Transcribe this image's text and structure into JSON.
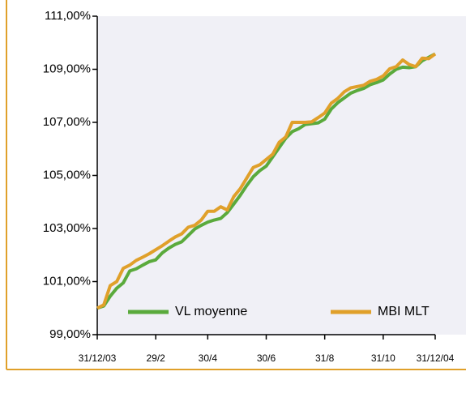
{
  "chart_data": {
    "type": "line",
    "categories": [
      "31/12/03",
      null,
      null,
      null,
      null,
      null,
      null,
      null,
      null,
      "29/2",
      null,
      null,
      null,
      null,
      null,
      null,
      null,
      "30/4",
      null,
      null,
      null,
      null,
      null,
      null,
      null,
      null,
      "30/6",
      null,
      null,
      null,
      null,
      null,
      null,
      null,
      null,
      "31/8",
      null,
      null,
      null,
      null,
      null,
      null,
      null,
      null,
      "31/10",
      null,
      null,
      null,
      null,
      null,
      null,
      null,
      "31/12/04"
    ],
    "series": [
      {
        "name": "VL moyenne",
        "color": "#5aaa3c",
        "values": [
          100.0,
          100.08,
          100.45,
          100.75,
          100.95,
          101.4,
          101.48,
          101.62,
          101.75,
          101.82,
          102.08,
          102.26,
          102.4,
          102.5,
          102.74,
          102.98,
          103.12,
          103.24,
          103.32,
          103.38,
          103.6,
          103.92,
          104.25,
          104.62,
          104.95,
          105.18,
          105.35,
          105.7,
          106.05,
          106.4,
          106.65,
          106.76,
          106.92,
          106.95,
          106.98,
          107.12,
          107.5,
          107.74,
          107.92,
          108.1,
          108.2,
          108.28,
          108.42,
          108.5,
          108.6,
          108.82,
          109.0,
          109.08,
          109.06,
          109.1,
          109.32,
          109.45,
          109.58
        ]
      },
      {
        "name": "MBI MLT",
        "color": "#e0a02a",
        "values": [
          100.0,
          100.12,
          100.85,
          101.0,
          101.5,
          101.62,
          101.8,
          101.92,
          102.05,
          102.2,
          102.35,
          102.52,
          102.68,
          102.8,
          103.05,
          103.12,
          103.32,
          103.65,
          103.65,
          103.82,
          103.7,
          104.2,
          104.5,
          104.9,
          105.3,
          105.4,
          105.6,
          105.8,
          106.25,
          106.45,
          107.0,
          107.0,
          107.0,
          107.02,
          107.18,
          107.35,
          107.72,
          107.9,
          108.15,
          108.3,
          108.35,
          108.4,
          108.55,
          108.62,
          108.75,
          109.02,
          109.1,
          109.35,
          109.18,
          109.1,
          109.42,
          109.4,
          109.58
        ]
      }
    ],
    "ylim": [
      99,
      111
    ],
    "yticks": [
      {
        "value": 99,
        "label": "99,00%"
      },
      {
        "value": 101,
        "label": "101,00%"
      },
      {
        "value": 103,
        "label": "103,00%"
      },
      {
        "value": 105,
        "label": "105,00%"
      },
      {
        "value": 107,
        "label": "107,00%"
      },
      {
        "value": 109,
        "label": "109,00%"
      },
      {
        "value": 111,
        "label": "111,00%"
      }
    ],
    "legend": "bottom"
  }
}
